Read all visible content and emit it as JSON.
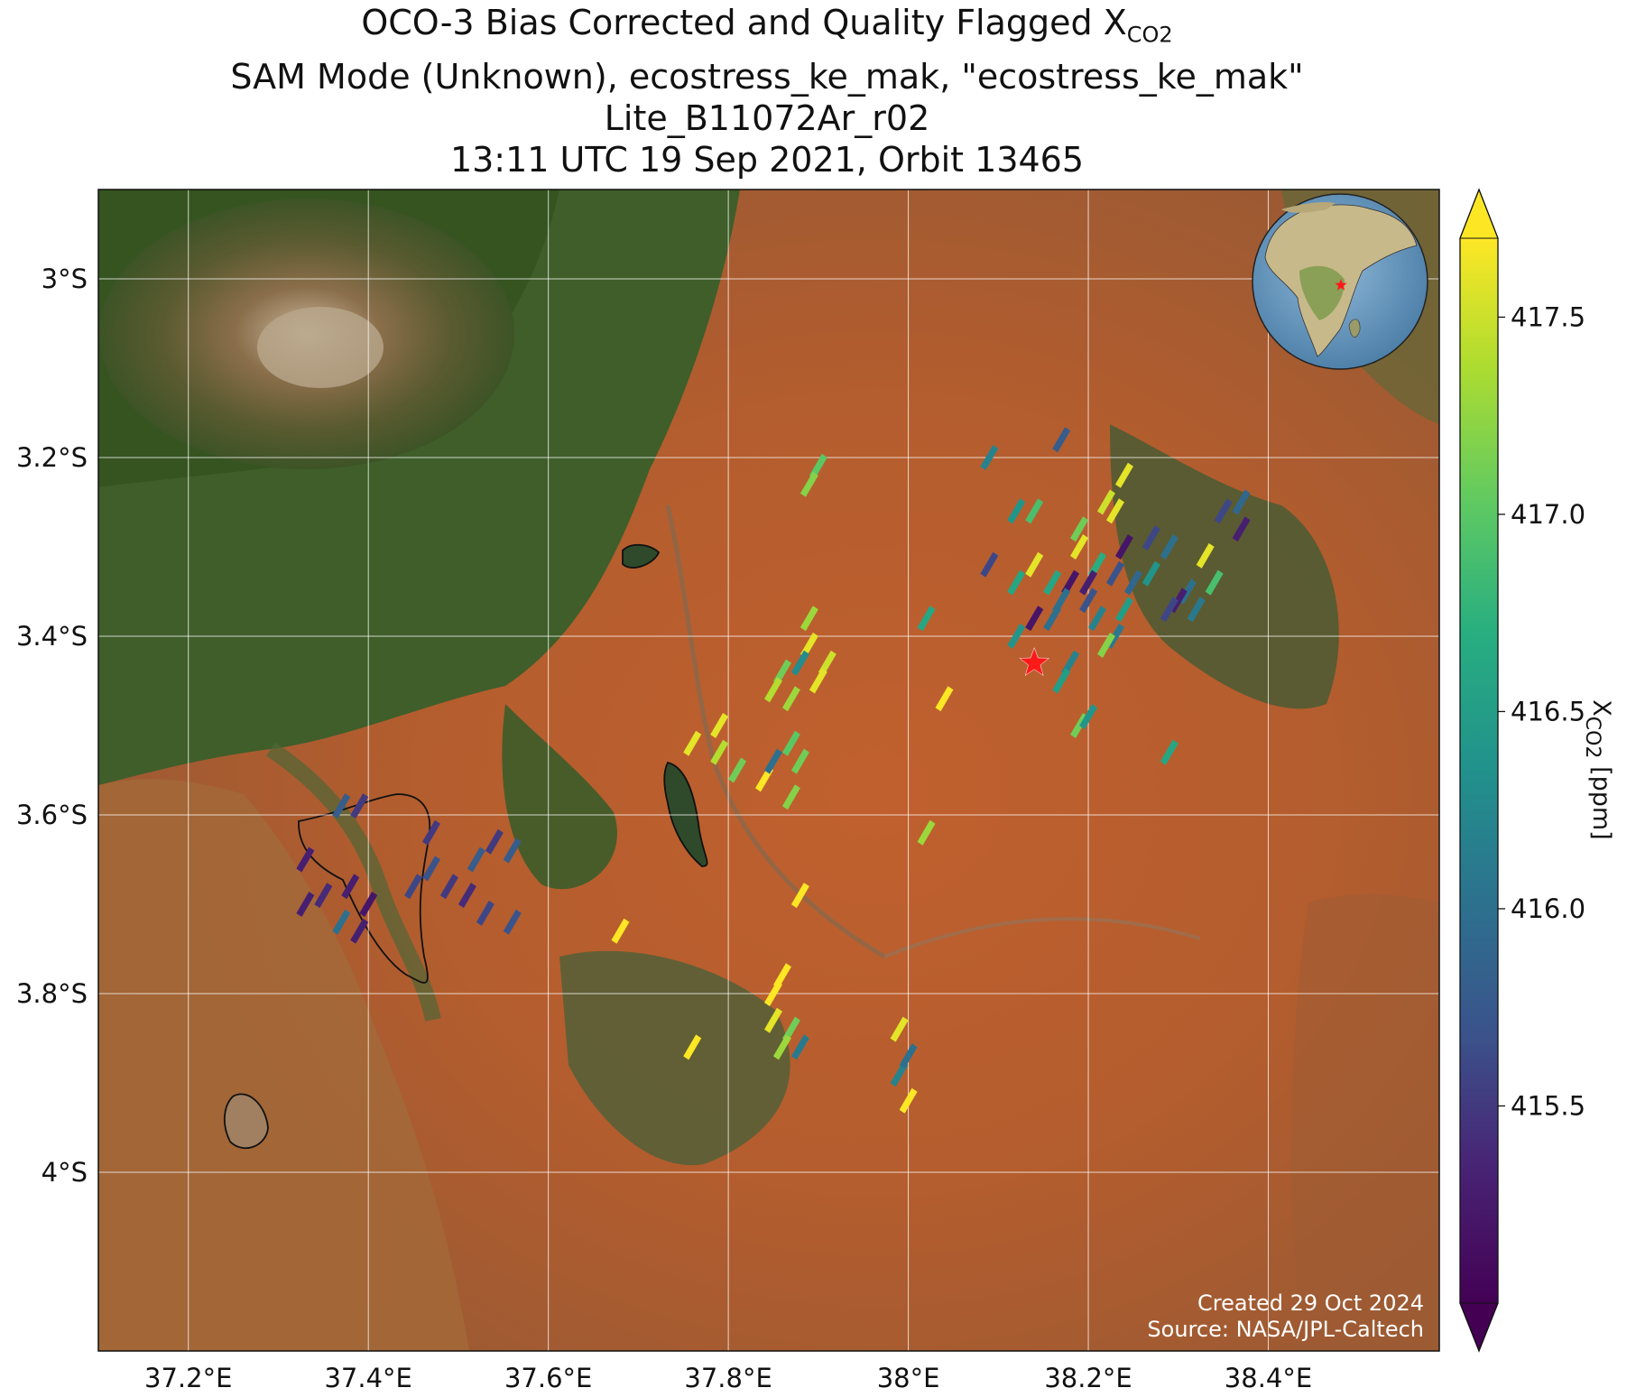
{
  "title": {
    "line1_prefix": "OCO-3 Bias Corrected and Quality Flagged X",
    "line1_sub": "CO2",
    "line2": "SAM Mode (Unknown), ecostress_ke_mak, \"ecostress_ke_mak\"",
    "line3": "Lite_B11072Ar_r02",
    "line4": "13:11 UTC 19 Sep 2021, Orbit 13465"
  },
  "axes": {
    "lon_ticks": [
      "37.2°E",
      "37.4°E",
      "37.6°E",
      "37.8°E",
      "38°E",
      "38.2°E",
      "38.4°E"
    ],
    "lat_ticks": [
      "3°S",
      "3.2°S",
      "3.4°S",
      "3.6°S",
      "3.8°S",
      "4°S"
    ],
    "lon_tick_values": [
      37.2,
      37.4,
      37.6,
      37.8,
      38.0,
      38.2,
      38.4
    ],
    "lat_tick_values": [
      -3.0,
      -3.2,
      -3.4,
      -3.6,
      -3.8,
      -4.0
    ],
    "lon_range": [
      37.1,
      38.59
    ],
    "lat_range": [
      -2.9,
      -4.2
    ],
    "grid": true
  },
  "colorbar": {
    "label_prefix": "X",
    "label_sub": "CO2",
    "label_suffix": " [ppm]",
    "ticks": [
      "415.5",
      "416.0",
      "416.5",
      "417.0",
      "417.5"
    ],
    "tick_values": [
      415.5,
      416.0,
      416.5,
      417.0,
      417.5
    ],
    "range": [
      415.0,
      417.7
    ],
    "colormap": "viridis",
    "extend": "both"
  },
  "target": {
    "lon": 38.14,
    "lat": -3.43,
    "marker": "red-star",
    "color": "#ff1a1a"
  },
  "inset": {
    "type": "globe",
    "marker": "red-star"
  },
  "credits": {
    "created": "Created 29 Oct 2024",
    "source": "Source: NASA/JPL-Caltech"
  },
  "chart_data": {
    "type": "scatter",
    "x_name": "longitude",
    "y_name": "latitude",
    "value_name": "XCO2 ppm",
    "points": [
      {
        "x": 37.9,
        "y": -3.21,
        "v": 417.0
      },
      {
        "x": 37.89,
        "y": -3.23,
        "v": 417.2
      },
      {
        "x": 38.09,
        "y": -3.2,
        "v": 416.2
      },
      {
        "x": 38.17,
        "y": -3.18,
        "v": 415.8
      },
      {
        "x": 38.24,
        "y": -3.22,
        "v": 417.6
      },
      {
        "x": 38.22,
        "y": -3.25,
        "v": 417.5
      },
      {
        "x": 38.23,
        "y": -3.26,
        "v": 417.6
      },
      {
        "x": 38.12,
        "y": -3.26,
        "v": 416.4
      },
      {
        "x": 38.14,
        "y": -3.26,
        "v": 416.9
      },
      {
        "x": 38.19,
        "y": -3.28,
        "v": 417.1
      },
      {
        "x": 38.19,
        "y": -3.3,
        "v": 417.6
      },
      {
        "x": 38.21,
        "y": -3.32,
        "v": 416.7
      },
      {
        "x": 38.24,
        "y": -3.3,
        "v": 415.2
      },
      {
        "x": 38.27,
        "y": -3.29,
        "v": 415.6
      },
      {
        "x": 38.29,
        "y": -3.3,
        "v": 416.0
      },
      {
        "x": 38.35,
        "y": -3.26,
        "v": 415.6
      },
      {
        "x": 38.37,
        "y": -3.25,
        "v": 415.9
      },
      {
        "x": 38.37,
        "y": -3.28,
        "v": 415.3
      },
      {
        "x": 38.33,
        "y": -3.31,
        "v": 417.6
      },
      {
        "x": 38.34,
        "y": -3.34,
        "v": 416.9
      },
      {
        "x": 38.31,
        "y": -3.35,
        "v": 416.0
      },
      {
        "x": 38.3,
        "y": -3.36,
        "v": 415.3
      },
      {
        "x": 38.32,
        "y": -3.37,
        "v": 416.1
      },
      {
        "x": 38.29,
        "y": -3.37,
        "v": 415.6
      },
      {
        "x": 38.27,
        "y": -3.33,
        "v": 416.4
      },
      {
        "x": 38.25,
        "y": -3.34,
        "v": 415.9
      },
      {
        "x": 38.23,
        "y": -3.33,
        "v": 415.7
      },
      {
        "x": 38.2,
        "y": -3.34,
        "v": 415.3
      },
      {
        "x": 38.18,
        "y": -3.34,
        "v": 415.2
      },
      {
        "x": 38.16,
        "y": -3.34,
        "v": 416.6
      },
      {
        "x": 38.14,
        "y": -3.32,
        "v": 417.6
      },
      {
        "x": 38.12,
        "y": -3.34,
        "v": 416.6
      },
      {
        "x": 38.09,
        "y": -3.32,
        "v": 415.6
      },
      {
        "x": 38.17,
        "y": -3.36,
        "v": 416.0
      },
      {
        "x": 38.2,
        "y": -3.36,
        "v": 415.7
      },
      {
        "x": 38.21,
        "y": -3.38,
        "v": 416.2
      },
      {
        "x": 38.24,
        "y": -3.37,
        "v": 416.5
      },
      {
        "x": 38.23,
        "y": -3.4,
        "v": 416.1
      },
      {
        "x": 38.22,
        "y": -3.41,
        "v": 417.2
      },
      {
        "x": 38.14,
        "y": -3.38,
        "v": 415.2
      },
      {
        "x": 38.12,
        "y": -3.4,
        "v": 416.4
      },
      {
        "x": 38.16,
        "y": -3.38,
        "v": 416.0
      },
      {
        "x": 38.18,
        "y": -3.43,
        "v": 416.2
      },
      {
        "x": 38.17,
        "y": -3.45,
        "v": 416.5
      },
      {
        "x": 38.02,
        "y": -3.38,
        "v": 416.6
      },
      {
        "x": 37.89,
        "y": -3.38,
        "v": 417.3
      },
      {
        "x": 37.89,
        "y": -3.41,
        "v": 417.6
      },
      {
        "x": 37.91,
        "y": -3.43,
        "v": 417.5
      },
      {
        "x": 37.88,
        "y": -3.43,
        "v": 416.3
      },
      {
        "x": 37.86,
        "y": -3.44,
        "v": 417.1
      },
      {
        "x": 37.9,
        "y": -3.45,
        "v": 417.6
      },
      {
        "x": 37.85,
        "y": -3.46,
        "v": 417.4
      },
      {
        "x": 37.87,
        "y": -3.47,
        "v": 417.3
      },
      {
        "x": 38.04,
        "y": -3.47,
        "v": 417.7
      },
      {
        "x": 37.76,
        "y": -3.52,
        "v": 417.6
      },
      {
        "x": 37.79,
        "y": -3.5,
        "v": 417.6
      },
      {
        "x": 37.79,
        "y": -3.53,
        "v": 417.4
      },
      {
        "x": 37.81,
        "y": -3.55,
        "v": 417.1
      },
      {
        "x": 37.84,
        "y": -3.56,
        "v": 417.7
      },
      {
        "x": 37.85,
        "y": -3.54,
        "v": 416.0
      },
      {
        "x": 37.87,
        "y": -3.52,
        "v": 417.0
      },
      {
        "x": 37.88,
        "y": -3.54,
        "v": 417.1
      },
      {
        "x": 37.87,
        "y": -3.58,
        "v": 417.2
      },
      {
        "x": 38.19,
        "y": -3.5,
        "v": 417.1
      },
      {
        "x": 38.2,
        "y": -3.49,
        "v": 416.4
      },
      {
        "x": 38.29,
        "y": -3.53,
        "v": 416.6
      },
      {
        "x": 38.02,
        "y": -3.62,
        "v": 417.3
      },
      {
        "x": 37.88,
        "y": -3.69,
        "v": 417.7
      },
      {
        "x": 37.68,
        "y": -3.73,
        "v": 417.7
      },
      {
        "x": 37.39,
        "y": -3.59,
        "v": 415.5
      },
      {
        "x": 37.37,
        "y": -3.59,
        "v": 415.8
      },
      {
        "x": 37.47,
        "y": -3.62,
        "v": 415.5
      },
      {
        "x": 37.54,
        "y": -3.63,
        "v": 415.5
      },
      {
        "x": 37.56,
        "y": -3.64,
        "v": 415.8
      },
      {
        "x": 37.52,
        "y": -3.65,
        "v": 415.8
      },
      {
        "x": 37.33,
        "y": -3.65,
        "v": 415.3
      },
      {
        "x": 37.47,
        "y": -3.66,
        "v": 415.7
      },
      {
        "x": 37.49,
        "y": -3.68,
        "v": 415.5
      },
      {
        "x": 37.45,
        "y": -3.68,
        "v": 415.6
      },
      {
        "x": 37.51,
        "y": -3.69,
        "v": 415.4
      },
      {
        "x": 37.38,
        "y": -3.68,
        "v": 415.3
      },
      {
        "x": 37.35,
        "y": -3.69,
        "v": 415.4
      },
      {
        "x": 37.33,
        "y": -3.7,
        "v": 415.3
      },
      {
        "x": 37.4,
        "y": -3.7,
        "v": 415.2
      },
      {
        "x": 37.53,
        "y": -3.71,
        "v": 415.6
      },
      {
        "x": 37.56,
        "y": -3.72,
        "v": 415.7
      },
      {
        "x": 37.37,
        "y": -3.72,
        "v": 416.0
      },
      {
        "x": 37.39,
        "y": -3.73,
        "v": 415.3
      },
      {
        "x": 37.86,
        "y": -3.78,
        "v": 417.7
      },
      {
        "x": 37.85,
        "y": -3.8,
        "v": 417.7
      },
      {
        "x": 37.85,
        "y": -3.83,
        "v": 417.6
      },
      {
        "x": 37.87,
        "y": -3.84,
        "v": 417.1
      },
      {
        "x": 37.86,
        "y": -3.86,
        "v": 417.3
      },
      {
        "x": 37.88,
        "y": -3.86,
        "v": 416.1
      },
      {
        "x": 37.76,
        "y": -3.86,
        "v": 417.7
      },
      {
        "x": 37.99,
        "y": -3.84,
        "v": 417.6
      },
      {
        "x": 37.99,
        "y": -3.89,
        "v": 416.2
      },
      {
        "x": 38.0,
        "y": -3.87,
        "v": 416.0
      },
      {
        "x": 38.0,
        "y": -3.92,
        "v": 417.7
      }
    ]
  }
}
